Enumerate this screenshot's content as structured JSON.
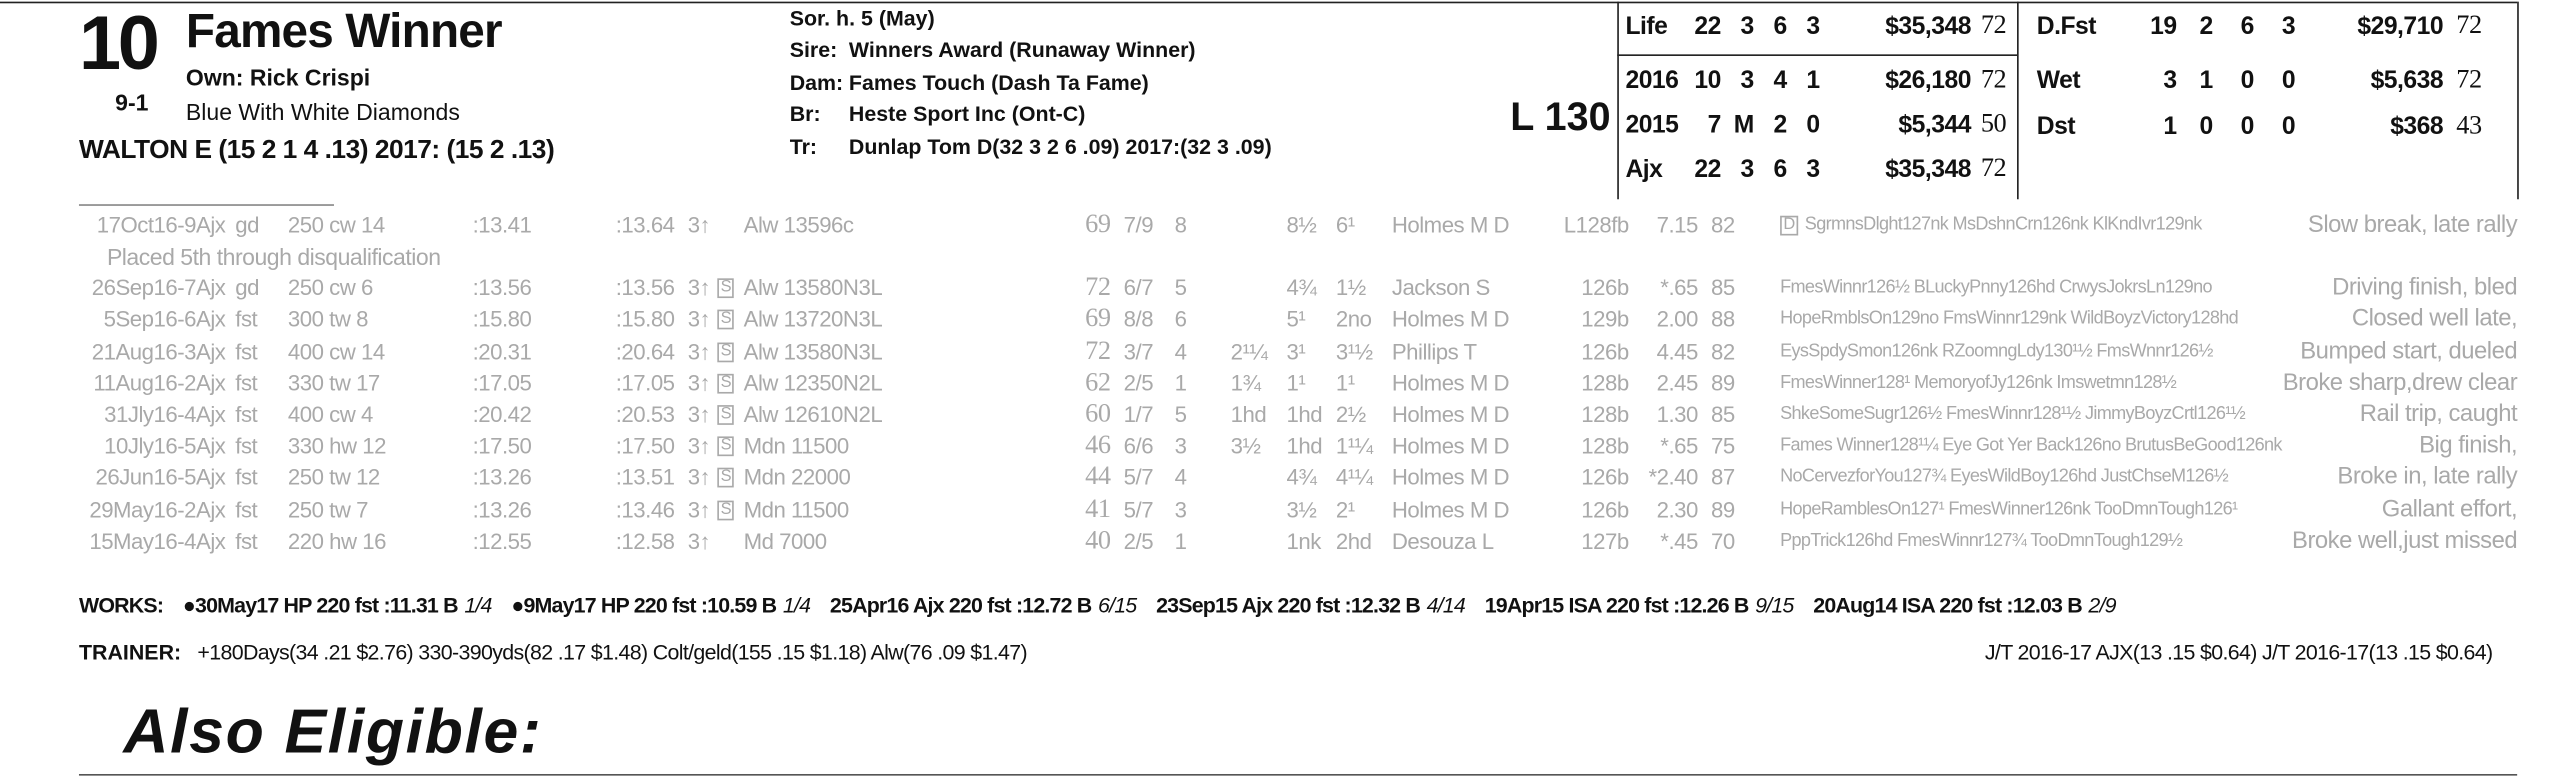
{
  "header": {
    "post": "10",
    "odds": "9-1",
    "name": "Fames Winner",
    "owner": "Own: Rick Crispi",
    "silks": "Blue With White Diamonds",
    "jockey": "WALTON E (15 2 1 4 .13) 2017: (15 2 .13)"
  },
  "pedigree": {
    "sex_age": "Sor. h. 5 (May)",
    "rows": [
      [
        "Sire:",
        "Winners Award (Runaway Winner)"
      ],
      [
        "Dam:",
        "Fames Touch (Dash Ta Fame)"
      ],
      [
        "Br:",
        "Heste Sport Inc (Ont-C)"
      ],
      [
        "Tr:",
        "Dunlap Tom D(32 3 2 6 .09) 2017:(32 3 .09)"
      ]
    ]
  },
  "weight": "L 130",
  "record": {
    "left": [
      [
        "Life",
        "22",
        "3",
        "6",
        "3",
        "$35,348",
        "72"
      ],
      [
        "2016",
        "10",
        "3",
        "4",
        "1",
        "$26,180",
        "72"
      ],
      [
        "2015",
        "7",
        "M",
        "2",
        "0",
        "$5,344",
        "50"
      ],
      [
        "Ajx",
        "22",
        "3",
        "6",
        "3",
        "$35,348",
        "72"
      ]
    ],
    "right": [
      [
        "D.Fst",
        "19",
        "2",
        "6",
        "3",
        "$29,710",
        "72"
      ],
      [
        "Wet",
        "3",
        "1",
        "0",
        "0",
        "$5,638",
        "72"
      ],
      [
        "Dst",
        "1",
        "0",
        "0",
        "0",
        "$368",
        "43"
      ]
    ]
  },
  "pp": {
    "rows": [
      {
        "date": "17Oct16-9Ajx",
        "cond": "gd",
        "dist": "250 cw 14",
        "f1": ":13.41",
        "f2": ":13.64",
        "age": "3↑",
        "race": "Alw 13596c",
        "fig": "69",
        "pp": "7/9",
        "st": "8",
        "c2": "8½",
        "fin": "6¹",
        "jky": "Holmes M D",
        "wt": "L128fb",
        "odds": "7.15",
        "spd": "82",
        "dq": "D",
        "top": "SgrmnsDlght127nk MsDshnCrn126nk KlKndIvr129nk",
        "cmt": "Slow break, late rally",
        "note": "Placed 5th through disqualification"
      },
      {
        "date": "26Sep16-7Ajx",
        "cond": "gd",
        "dist": "250 cw 6",
        "f1": ":13.56",
        "f2": ":13.56",
        "age": "3↑",
        "sb": "S",
        "race": "Alw 13580N3L",
        "fig": "72",
        "pp": "6/7",
        "st": "5",
        "c2": "4¾",
        "fin": "1½",
        "jky": "Jackson S",
        "wt": "126b",
        "odds": "*.65",
        "spd": "85",
        "top": "FmesWinnr126½ BLuckyPnny126hd CrwysJokrsLn129no",
        "cmt": "Driving finish, bled"
      },
      {
        "date": "5Sep16-6Ajx",
        "cond": "fst",
        "dist": "300 tw 8",
        "f1": ":15.80",
        "f2": ":15.80",
        "age": "3↑",
        "sb": "S",
        "race": "Alw 13720N3L",
        "fig": "69",
        "pp": "8/8",
        "st": "6",
        "c2": "5¹",
        "fin": "2no",
        "jky": "Holmes M D",
        "wt": "129b",
        "odds": "2.00",
        "spd": "88",
        "top": "HopeRmblsOn129no FmsWinnr129nk WildBoyzVictory128hd",
        "cmt": "Closed well late,"
      },
      {
        "date": "21Aug16-3Ajx",
        "cond": "fst",
        "dist": "400 cw 14",
        "f1": ":20.31",
        "f2": ":20.64",
        "age": "3↑",
        "sb": "S",
        "race": "Alw 13580N3L",
        "fig": "72",
        "pp": "3/7",
        "st": "4",
        "c1": "2¹¼",
        "c2": "3¹",
        "fin": "3¹½",
        "jky": "Phillips T",
        "wt": "126b",
        "odds": "4.45",
        "spd": "82",
        "top": "EysSpdySmon126nk RZoomngLdy130¹½ FmsWnnr126½",
        "cmt": "Bumped start, dueled"
      },
      {
        "date": "11Aug16-2Ajx",
        "cond": "fst",
        "dist": "330 tw 17",
        "f1": ":17.05",
        "f2": ":17.05",
        "age": "3↑",
        "sb": "S",
        "race": "Alw 12350N2L",
        "fig": "62",
        "pp": "2/5",
        "st": "1",
        "c1": "1¾",
        "c2": "1¹",
        "fin": "1¹",
        "jky": "Holmes M D",
        "wt": "128b",
        "odds": "2.45",
        "spd": "89",
        "top": "FmesWinner128¹ MemoryofJy126nk Imswetmn128½",
        "cmt": "Broke sharp,drew clear"
      },
      {
        "date": "31Jly16-4Ajx",
        "cond": "fst",
        "dist": "400 cw 4",
        "f1": ":20.42",
        "f2": ":20.53",
        "age": "3↑",
        "sb": "S",
        "race": "Alw 12610N2L",
        "fig": "60",
        "pp": "1/7",
        "st": "5",
        "c1": "1hd",
        "c2": "1hd",
        "fin": "2½",
        "jky": "Holmes M D",
        "wt": "128b",
        "odds": "1.30",
        "spd": "85",
        "top": "ShkeSomeSugr126½ FmesWinnr128¹½ JimmyBoyzCrtl126¹½",
        "cmt": "Rail trip, caught"
      },
      {
        "date": "10Jly16-5Ajx",
        "cond": "fst",
        "dist": "330 hw 12",
        "f1": ":17.50",
        "f2": ":17.50",
        "age": "3↑",
        "sb": "S",
        "race": "Mdn 11500",
        "fig": "46",
        "pp": "6/6",
        "st": "3",
        "c1": "3½",
        "c2": "1hd",
        "fin": "1¹¼",
        "jky": "Holmes M D",
        "wt": "128b",
        "odds": "*.65",
        "spd": "75",
        "top": "Fames Winner128¹¼ Eye Got Yer Back126no BrutusBeGood126nk",
        "cmt": "Big finish,"
      },
      {
        "date": "26Jun16-5Ajx",
        "cond": "fst",
        "dist": "250 tw 12",
        "f1": ":13.26",
        "f2": ":13.51",
        "age": "3↑",
        "sb": "S",
        "race": "Mdn 22000",
        "fig": "44",
        "pp": "5/7",
        "st": "4",
        "c2": "4¾",
        "fin": "4¹¼",
        "jky": "Holmes M D",
        "wt": "126b",
        "odds": "*2.40",
        "spd": "87",
        "top": "NoCervezforYou127¾ EyesWildBoy126hd JustChseM126½",
        "cmt": "Broke in, late rally"
      },
      {
        "date": "29May16-2Ajx",
        "cond": "fst",
        "dist": "250 tw 7",
        "f1": ":13.26",
        "f2": ":13.46",
        "age": "3↑",
        "sb": "S",
        "race": "Mdn 11500",
        "fig": "41",
        "pp": "5/7",
        "st": "3",
        "c2": "3½",
        "fin": "2¹",
        "jky": "Holmes M D",
        "wt": "126b",
        "odds": "2.30",
        "spd": "89",
        "top": "HopeRamblesOn127¹ FmesWinner126nk TooDmnTough126¹",
        "cmt": "Gallant effort,"
      },
      {
        "date": "15May16-4Ajx",
        "cond": "fst",
        "dist": "220 hw 16",
        "f1": ":12.55",
        "f2": ":12.58",
        "age": "3↑",
        "race": "Md 7000",
        "fig": "40",
        "pp": "2/5",
        "st": "1",
        "c2": "1nk",
        "fin": "2hd",
        "jky": "Desouza L",
        "wt": "127b",
        "odds": "*.45",
        "spd": "70",
        "top": "PppTrick126hd FmesWinnr127¾ TooDmnTough129½",
        "cmt": "Broke well,just missed"
      }
    ]
  },
  "works": {
    "label": "WORKS:",
    "entries": [
      {
        "bullet": "●",
        "entry": "30May17 HP 220 fst :11.31 B",
        "rank": "1/4"
      },
      {
        "bullet": "●",
        "entry": "9May17 HP 220 fst :10.59 B",
        "rank": "1/4"
      },
      {
        "entry": "25Apr16 Ajx 220 fst :12.72 B",
        "rank": "6/15"
      },
      {
        "entry": "23Sep15 Ajx 220 fst :12.32 B",
        "rank": "4/14"
      },
      {
        "entry": "19Apr15 ISA 220 fst :12.26 B",
        "rank": "9/15"
      },
      {
        "entry": "20Aug14 ISA 220 fst :12.03 B",
        "rank": "2/9"
      }
    ]
  },
  "trainer": {
    "label": "TRAINER:",
    "stats": "+180Days(34 .21 $2.76) 330-390yds(82 .17 $1.48) Colt/geld(155 .15 $1.18) Alw(76 .09 $1.47)",
    "jt": "J/T 2016-17 AJX(13 .15 $0.64) J/T 2016-17(13 .15 $0.64)"
  },
  "also_eligible": "Also Eligible:"
}
